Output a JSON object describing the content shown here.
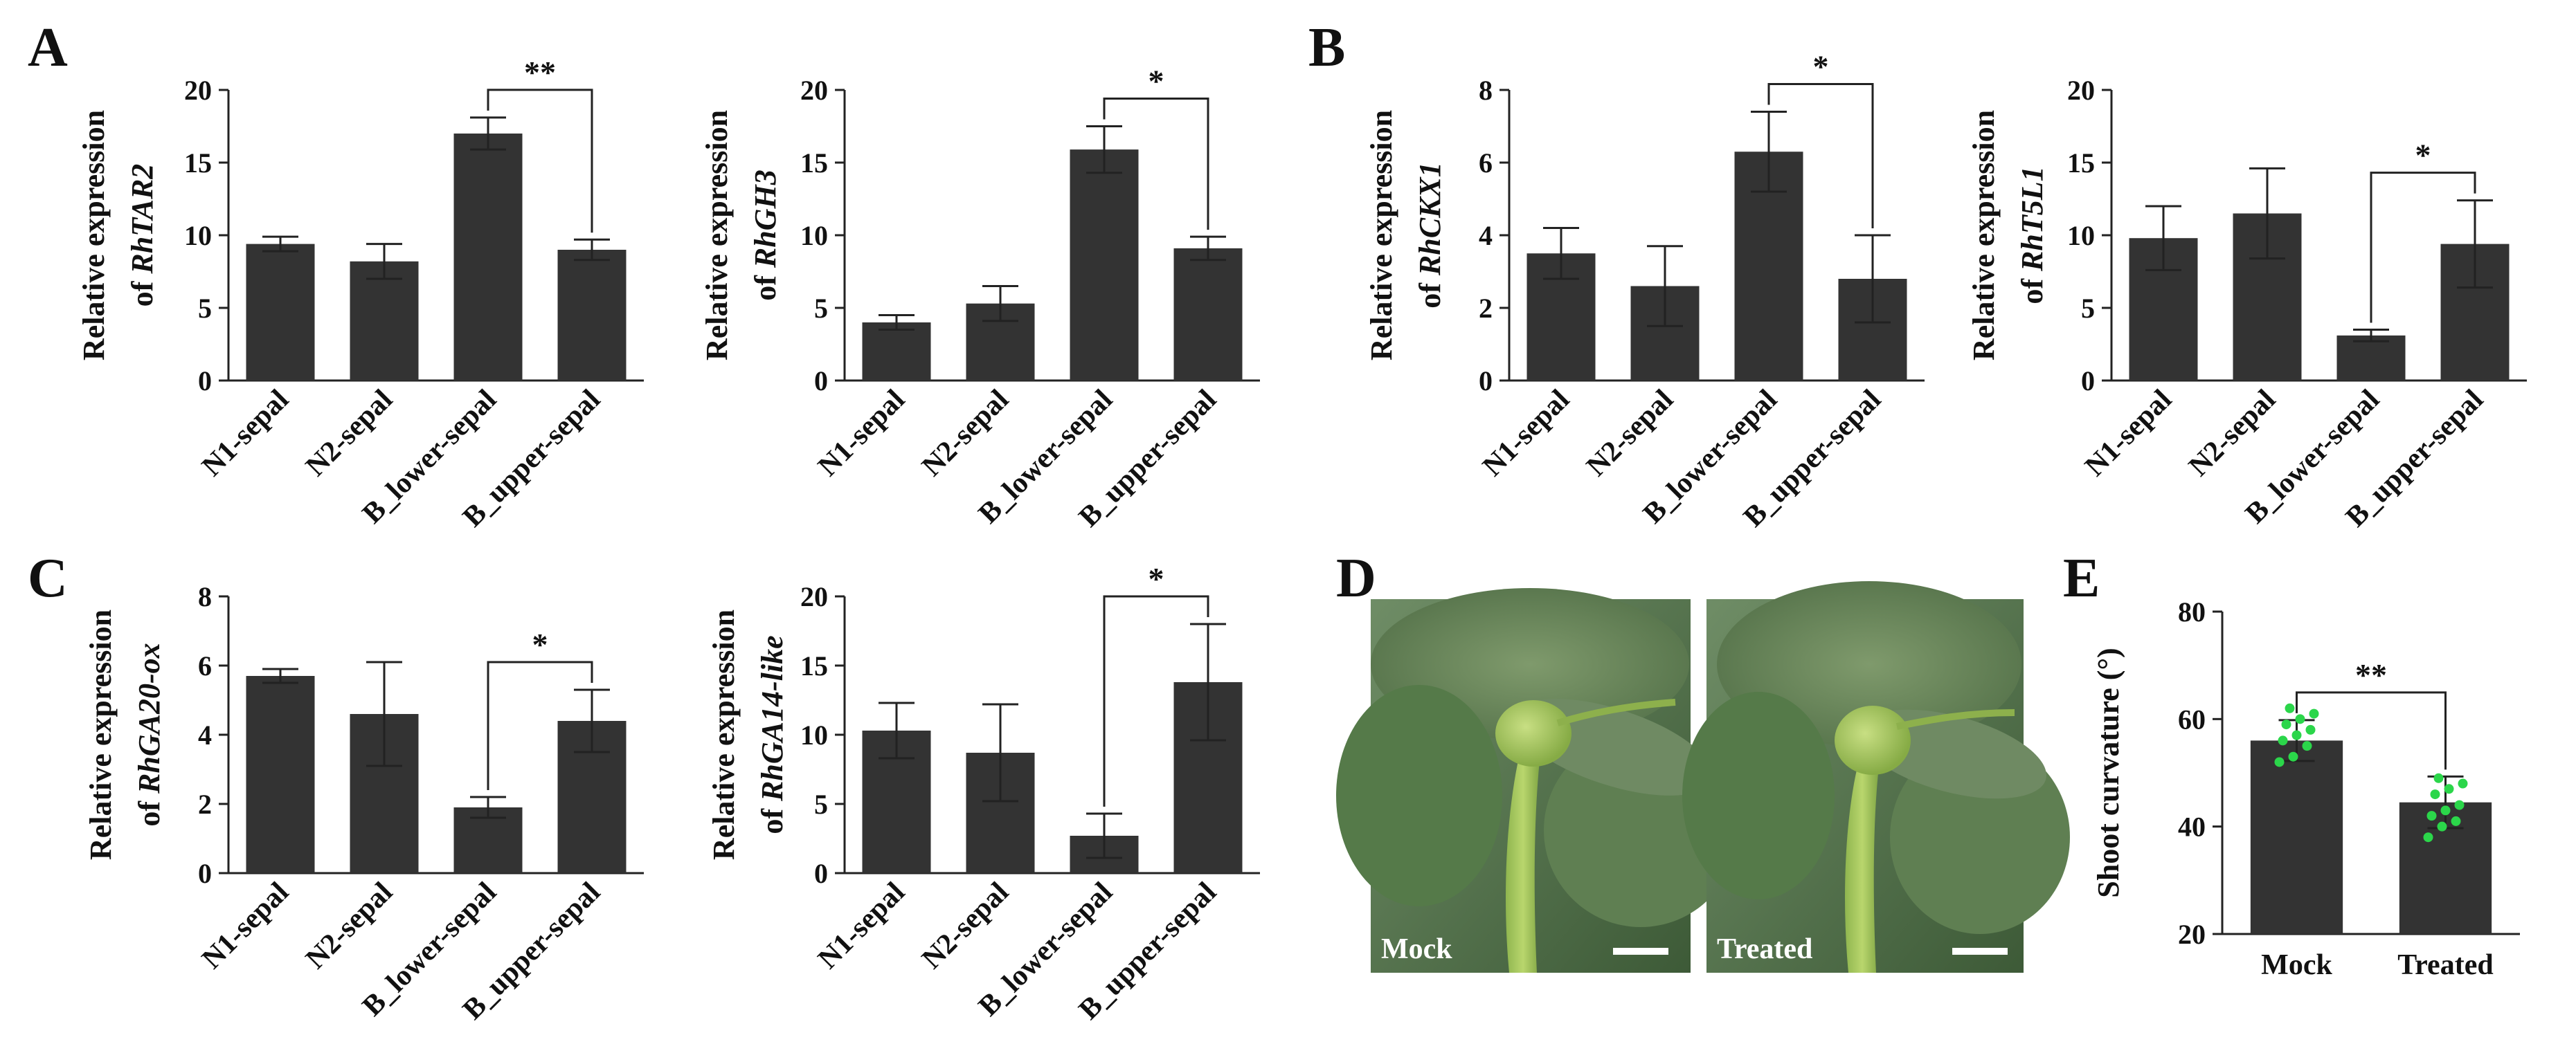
{
  "chart_data": [
    {
      "panel": "A",
      "type": "bar",
      "categories": [
        "N1-sepal",
        "N2-sepal",
        "B_lower-sepal",
        "B_upper-sepal"
      ],
      "values": [
        9.4,
        8.2,
        17.0,
        9.0
      ],
      "errors": [
        0.5,
        1.2,
        1.1,
        0.7
      ],
      "ylabel_line1": "Relative expression",
      "ylabel_prefix": "of ",
      "ylabel_gene": "RhTAR2",
      "ylim": [
        0,
        20
      ],
      "yticks": [
        "0",
        "5",
        "10",
        "15",
        "20"
      ],
      "significance": [
        {
          "from": 2,
          "to": 3,
          "label": "**"
        }
      ]
    },
    {
      "panel": "",
      "type": "bar",
      "categories": [
        "N1-sepal",
        "N2-sepal",
        "B_lower-sepal",
        "B_upper-sepal"
      ],
      "values": [
        4.0,
        5.3,
        15.9,
        9.1
      ],
      "errors": [
        0.5,
        1.2,
        1.6,
        0.8
      ],
      "ylabel_line1": "Relative expression",
      "ylabel_prefix": "of ",
      "ylabel_gene": "RhGH3",
      "ylim": [
        0,
        20
      ],
      "yticks": [
        "0",
        "5",
        "10",
        "15",
        "20"
      ],
      "significance": [
        {
          "from": 2,
          "to": 3,
          "label": "*"
        }
      ]
    },
    {
      "panel": "B",
      "type": "bar",
      "categories": [
        "N1-sepal",
        "N2-sepal",
        "B_lower-sepal",
        "B_upper-sepal"
      ],
      "values": [
        3.5,
        2.6,
        6.3,
        2.8
      ],
      "errors": [
        0.7,
        1.1,
        1.1,
        1.2
      ],
      "ylabel_line1": "Relative expression",
      "ylabel_prefix": "of ",
      "ylabel_gene": "RhCKX1",
      "ylim": [
        0,
        8
      ],
      "yticks": [
        "0",
        "2",
        "4",
        "6",
        "8"
      ],
      "significance": [
        {
          "from": 2,
          "to": 3,
          "label": "*"
        }
      ]
    },
    {
      "panel": "",
      "type": "bar",
      "categories": [
        "N1-sepal",
        "N2-sepal",
        "B_lower-sepal",
        "B_upper-sepal"
      ],
      "values": [
        9.8,
        11.5,
        3.1,
        9.4
      ],
      "errors": [
        2.2,
        3.1,
        0.4,
        3.0
      ],
      "ylabel_line1": "Relative expression",
      "ylabel_prefix": "of ",
      "ylabel_gene": "RhT5L1",
      "ylim": [
        0,
        20
      ],
      "yticks": [
        "0",
        "5",
        "10",
        "15",
        "20"
      ],
      "significance": [
        {
          "from": 2,
          "to": 3,
          "label": "*"
        }
      ]
    },
    {
      "panel": "C",
      "type": "bar",
      "categories": [
        "N1-sepal",
        "N2-sepal",
        "B_lower-sepal",
        "B_upper-sepal"
      ],
      "values": [
        5.7,
        4.6,
        1.9,
        4.4
      ],
      "errors": [
        0.2,
        1.5,
        0.3,
        0.9
      ],
      "ylabel_line1": "Relative expression",
      "ylabel_prefix": "of ",
      "ylabel_gene": "RhGA20-ox",
      "ylim": [
        0,
        8
      ],
      "yticks": [
        "0",
        "2",
        "4",
        "6",
        "8"
      ],
      "significance": [
        {
          "from": 2,
          "to": 3,
          "label": "*"
        }
      ]
    },
    {
      "panel": "",
      "type": "bar",
      "categories": [
        "N1-sepal",
        "N2-sepal",
        "B_lower-sepal",
        "B_upper-sepal"
      ],
      "values": [
        10.3,
        8.7,
        2.7,
        13.8
      ],
      "errors": [
        2.0,
        3.5,
        1.6,
        4.2
      ],
      "ylabel_line1": "Relative expression",
      "ylabel_prefix": "of ",
      "ylabel_gene": "RhGA14-like",
      "ylim": [
        0,
        20
      ],
      "yticks": [
        "0",
        "5",
        "10",
        "15",
        "20"
      ],
      "significance": [
        {
          "from": 2,
          "to": 3,
          "label": "*"
        }
      ]
    },
    {
      "panel": "E",
      "type": "bar",
      "categories": [
        "Mock",
        "Treated"
      ],
      "values": [
        56,
        44.5
      ],
      "errors": [
        3.8,
        4.8
      ],
      "ylabel": "Shoot curvature (°)",
      "ylim": [
        20,
        80
      ],
      "yticks": [
        "20",
        "40",
        "60",
        "80"
      ],
      "significance": [
        {
          "from": 0,
          "to": 1,
          "label": "**"
        }
      ],
      "points": [
        [
          52,
          53,
          55,
          56,
          57,
          58,
          59,
          60,
          61,
          62
        ],
        [
          38,
          40,
          41,
          42,
          43,
          44,
          46,
          47,
          48,
          49
        ]
      ],
      "point_color": "#2bd64a"
    }
  ],
  "photos": {
    "panel": "D",
    "left_label": "Mock",
    "right_label": "Treated"
  }
}
